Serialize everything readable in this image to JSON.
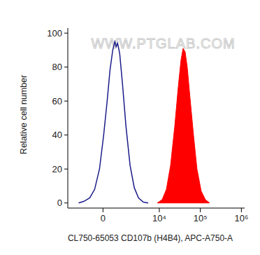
{
  "chart_data": {
    "type": "line",
    "x_label": "CL750-65053 CD107b (H4B4), APC-A750-A",
    "y_label": "Relative cell number",
    "watermark": "WWW.PTGLAB.COM",
    "log": "x",
    "xlim": [
      -3000,
      1200000
    ],
    "xticks": [
      0,
      {
        "value": 10000,
        "label": "10⁴"
      },
      {
        "value": 100000,
        "label": "10⁵"
      },
      {
        "value": 1000000,
        "label": "10⁶"
      }
    ],
    "ylim": [
      -3,
      103
    ],
    "yticks": [
      0,
      20,
      40,
      60,
      80,
      100
    ],
    "series": [
      {
        "type": "line",
        "color": "#1c1c8a",
        "x": [
          -1556,
          -1080,
          -690,
          -413,
          -167,
          33,
          201,
          341,
          489,
          607,
          690,
          778,
          919,
          1128,
          1428,
          1853,
          2385,
          3060,
          4055,
          5350
        ],
        "values": [
          0,
          1,
          3,
          8,
          20,
          40,
          60,
          78,
          90,
          95,
          92,
          94,
          88,
          70,
          45,
          22,
          9,
          3,
          0.5,
          0
        ]
      },
      {
        "type": "area",
        "color": "#ff0000",
        "x": [
          8950,
          11750,
          14870,
          18800,
          23750,
          28900,
          33750,
          37950,
          42650,
          48000,
          56100,
          68200,
          82900,
          104900,
          132600,
          167700
        ],
        "values": [
          0,
          2,
          8,
          22,
          45,
          68,
          84,
          91,
          89,
          80,
          62,
          40,
          20,
          7,
          2,
          0
        ]
      }
    ]
  }
}
